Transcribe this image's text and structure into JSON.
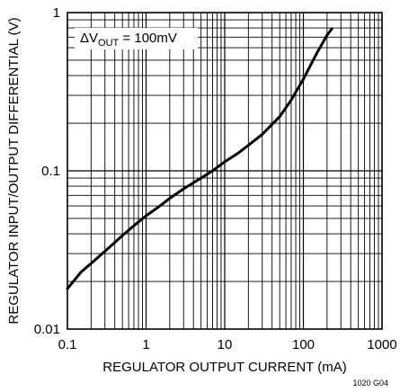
{
  "chart_data": {
    "type": "line",
    "title": "",
    "xlabel": "REGULATOR OUTPUT CURRENT (mA)",
    "ylabel": "REGULATOR INPUT/OUTPUT DIFFERENTIAL (V)",
    "x_scale": "log",
    "y_scale": "log",
    "xlim": [
      0.1,
      1000
    ],
    "ylim": [
      0.01,
      1
    ],
    "grid": true,
    "x_tick_labels": [
      "0.1",
      "1",
      "10",
      "100",
      "1000"
    ],
    "y_tick_labels": [
      "0.01",
      "0.1",
      "1"
    ],
    "annotation": {
      "delta": "ΔV",
      "sub": "OUT",
      "rest": " = 100mV"
    },
    "figure_id": "1020 G04",
    "series": [
      {
        "x": [
          0.1,
          0.15,
          0.2,
          0.3,
          0.5,
          0.7,
          1,
          1.5,
          2,
          3,
          5,
          7,
          10,
          15,
          20,
          30,
          50,
          70,
          100,
          150,
          200,
          230
        ],
        "y": [
          0.018,
          0.023,
          0.026,
          0.031,
          0.039,
          0.045,
          0.052,
          0.06,
          0.067,
          0.077,
          0.09,
          0.1,
          0.114,
          0.13,
          0.145,
          0.17,
          0.22,
          0.28,
          0.38,
          0.56,
          0.72,
          0.79
        ]
      }
    ]
  }
}
